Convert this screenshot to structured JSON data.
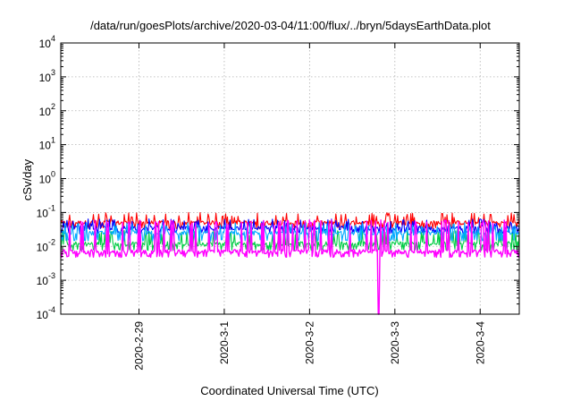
{
  "chart_data": {
    "type": "line",
    "title": "/data/run/goesPlots/archive/2020-03-04/11:00/flux/../bryn/5daysEarthData.plot",
    "xlabel": "Coordinated Universal Time (UTC)",
    "ylabel": "cSv/day",
    "yscale": "log",
    "ylim": [
      0.0001,
      10000
    ],
    "xlim": [
      "2020-02-28T02:00",
      "2020-03-04T11:00"
    ],
    "grid": true,
    "legend": "none",
    "x_ticks": [
      "2020-2-29",
      "2020-3-1",
      "2020-3-2",
      "2020-3-3",
      "2020-3-4"
    ],
    "y_ticks": [
      {
        "base": "10",
        "exp": "-4"
      },
      {
        "base": "10",
        "exp": "-3"
      },
      {
        "base": "10",
        "exp": "-2"
      },
      {
        "base": "10",
        "exp": "-1"
      },
      {
        "base": "10",
        "exp": "0"
      },
      {
        "base": "10",
        "exp": "1"
      },
      {
        "base": "10",
        "exp": "2"
      },
      {
        "base": "10",
        "exp": "3"
      },
      {
        "base": "10",
        "exp": "4"
      }
    ],
    "series": [
      {
        "color": "#ff0000",
        "baseline": 0.05,
        "low": 0.035,
        "high": 0.1
      },
      {
        "color": "#00cc44",
        "baseline": 0.012,
        "low": 0.008,
        "high": 0.03
      },
      {
        "color": "#0000ff",
        "baseline": 0.035,
        "low": 0.025,
        "high": 0.065
      },
      {
        "color": "#00aaff",
        "baseline": 0.025,
        "low": 0.015,
        "high": 0.05
      },
      {
        "color": "#ff00ff",
        "baseline": 0.007,
        "low": 0.005,
        "high": 0.06,
        "dropout_date": "2020-03-02T19:30",
        "dropout_value": 0.0001
      }
    ]
  }
}
